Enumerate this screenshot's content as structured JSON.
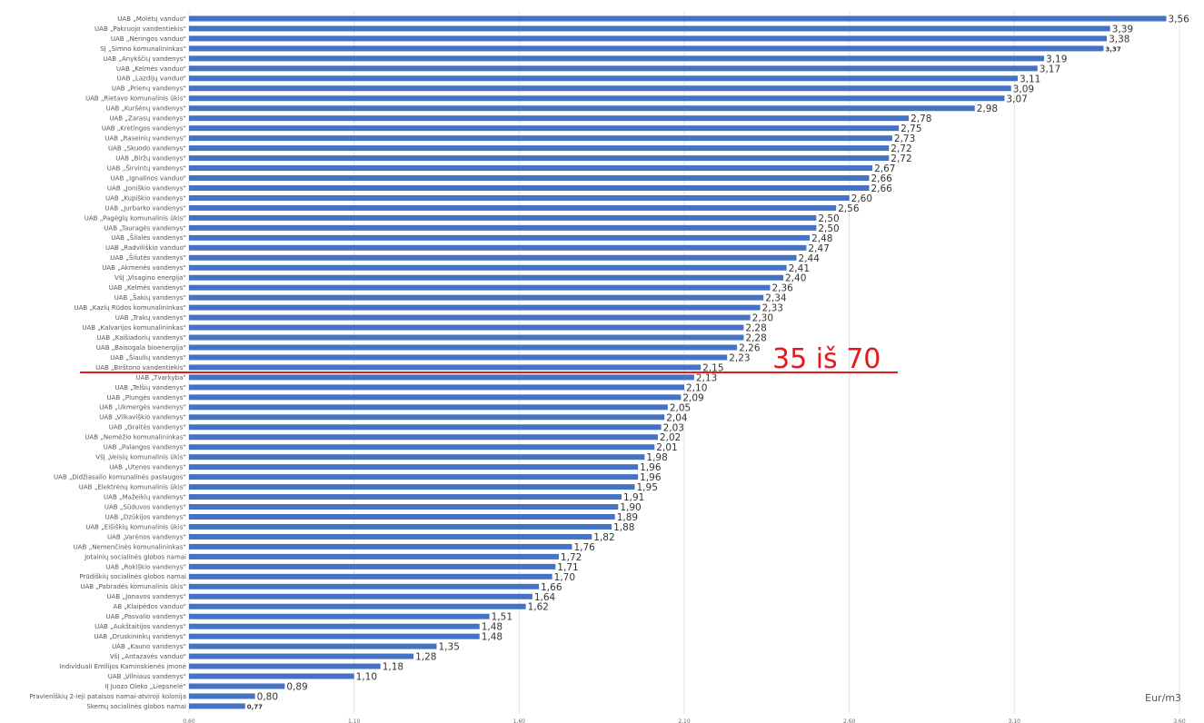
{
  "chart_data": {
    "type": "bar",
    "orientation": "horizontal",
    "categories": [
      "UAB „Molėtų vanduo“",
      "UAB „Pakruojo vandentiekis“",
      "UAB „Neringos vanduo“",
      "SĮ „Simno komunalininkas“",
      "UAB „Anykščių vandenys“",
      "UAB „Kelmės vanduo“",
      "UAB „Lazdijų vanduo“",
      "UAB „Prienų vandenys“",
      "UAB „Rietavo komunalinis ūkis“",
      "UAB „Kuršėnų vandenys“",
      "UAB „Zarasų vandenys“",
      "UAB „Kretingos vandenys“",
      "UAB „Raseinių vandenys“",
      "UAB „Skuodo vandenys“",
      "UAB „Biržų vandenys“",
      "UAB „Širvintų vandenys“",
      "UAB „Ignalinos vanduo“",
      "UAB „Joniškio vandenys“",
      "UAB „Kupiškio vandenys“",
      "UAB „Jurbarko vandenys“",
      "UAB „Pagėgių komunalinis ūkis“",
      "UAB „Tauragės vandenys“",
      "UAB „Šilalės vandenys“",
      "UAB „Radviliškio vanduo“",
      "UAB „Šilutės vandenys“",
      "UAB „Akmenės vandenys“",
      "VšĮ „Visagino energija“",
      "UAB „Kelmės vandenys“",
      "UAB „Šakių vandenys“",
      "UAB „Kazlų Rūdos komunalininkas“",
      "UAB „Trakų vandenys“",
      "UAB „Kalvarijos komunalininkas“",
      "UAB „Kaišiadorių vandenys“",
      "UAB „Baisogala bioenergija“",
      "UAB „Šiaulių vandenys“",
      "UAB „Birštono vandentiekis“",
      "UAB „Tvarkyba“",
      "UAB „Telšių vandenys“",
      "UAB „Plungės vandenys“",
      "UAB „Ukmergės vandenys“",
      "UAB „Vilkaviškio vandenys“",
      "UAB „Graitės vandenys“",
      "UAB „Nemėžio komunalininkas“",
      "UAB „Palangos vandenys“",
      "VšĮ „Veisių komunalinis ūkis“",
      "UAB „Utenos vandenys“",
      "UAB „Didžiasalio komunalinės paslaugos“",
      "UAB „Elektrėnų komunalinis ūkis“",
      "UAB „Mažeikių vandenys“",
      "UAB „Sūduvos vandenys“",
      "UAB „Dzūkijos vandenys“",
      "UAB „Eišiškių komunalinis ūkis“",
      "UAB „Varėnos vandenys“",
      "UAB „Nemenčinės komunalininkas“",
      "Jotainių socialinės globos namai",
      "UAB „Rokiškio vandenys“",
      "Prūdiškių socialinės globos namai",
      "UAB „Pabradės komunalinis ūkis“",
      "UAB „Jonavos vandenys“",
      "AB „Klaipėdos vanduo“",
      "UAB „Pasvalio vandenys“",
      "UAB „Aukštaitijos vandenys“",
      "UAB „Druskininkų vandenys“",
      "UAB „Kauno vandenys“",
      "VšĮ „Antazavės vanduo“",
      "Individuali Emilijos Kaminskienės įmonė",
      "UAB „Vilniaus vandenys“",
      "IĮ Juozo Oleko „Liepsnelė“",
      "Pravieniškių 2-ieji pataisos namai-atviroji kolonija",
      "Skemų socialinės globos namai"
    ],
    "values": [
      3.56,
      3.39,
      3.38,
      3.37,
      3.19,
      3.17,
      3.11,
      3.09,
      3.07,
      2.98,
      2.78,
      2.75,
      2.73,
      2.72,
      2.72,
      2.67,
      2.66,
      2.66,
      2.6,
      2.56,
      2.5,
      2.5,
      2.48,
      2.47,
      2.44,
      2.41,
      2.4,
      2.36,
      2.34,
      2.33,
      2.3,
      2.28,
      2.28,
      2.26,
      2.23,
      2.15,
      2.13,
      2.1,
      2.09,
      2.05,
      2.04,
      2.03,
      2.02,
      2.01,
      1.98,
      1.96,
      1.96,
      1.95,
      1.91,
      1.9,
      1.89,
      1.88,
      1.82,
      1.76,
      1.72,
      1.71,
      1.7,
      1.66,
      1.64,
      1.62,
      1.51,
      1.48,
      1.48,
      1.35,
      1.28,
      1.18,
      1.1,
      0.89,
      0.8,
      0.77
    ],
    "value_labels": [
      "3,56",
      "3,39",
      "3,38",
      "3,37",
      "3,19",
      "3,17",
      "3,11",
      "3,09",
      "3,07",
      "2,98",
      "2,78",
      "2,75",
      "2,73",
      "2,72",
      "2,72",
      "2,67",
      "2,66",
      "2,66",
      "2,60",
      "2,56",
      "2,50",
      "2,50",
      "2,48",
      "2,47",
      "2,44",
      "2,41",
      "2,40",
      "2,36",
      "2,34",
      "2,33",
      "2,30",
      "2,28",
      "2,28",
      "2,26",
      "2,23",
      "2,15",
      "2,13",
      "2,10",
      "2,09",
      "2,05",
      "2,04",
      "2,03",
      "2,02",
      "2,01",
      "1,98",
      "1,96",
      "1,96",
      "1,95",
      "1,91",
      "1,90",
      "1,89",
      "1,88",
      "1,82",
      "1,76",
      "1,72",
      "1,71",
      "1,70",
      "1,66",
      "1,64",
      "1,62",
      "1,51",
      "1,48",
      "1,48",
      "1,35",
      "1,28",
      "1,18",
      "1,10",
      "0,89",
      "0,80",
      "0,77"
    ],
    "small_label_indices": [
      3,
      69
    ],
    "x_axis_ticks": [
      0.6,
      1.1,
      1.6,
      2.1,
      2.6,
      3.1,
      3.6
    ],
    "x_tick_labels": [
      "0,60",
      "1,10",
      "1,60",
      "2,10",
      "2,60",
      "3,10",
      "3,60"
    ],
    "xlim": [
      0.6,
      3.6
    ],
    "unit_label": "Eur/m3",
    "bar_color": "#4472c4",
    "grid": true,
    "annotation": {
      "text": "35 iš 70",
      "color": "#e41a1c",
      "category_index": 35
    }
  }
}
